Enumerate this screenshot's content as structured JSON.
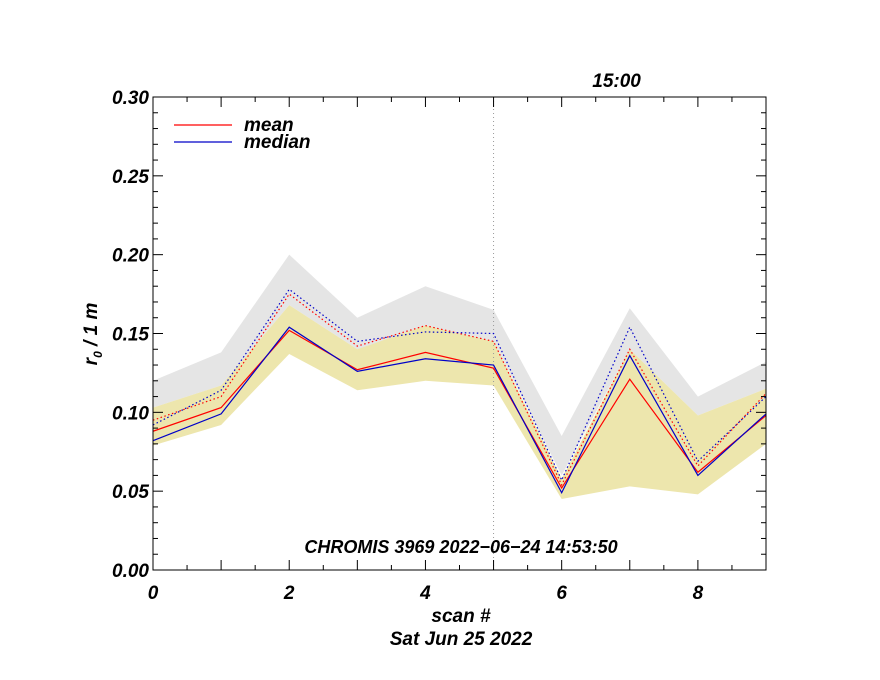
{
  "chart_data": {
    "type": "line",
    "title": "",
    "xlabel": "scan #",
    "ylabel_main": "r",
    "ylabel_sub": "0",
    "ylabel_unit": " / 1 m",
    "date_label": "Sat Jun 25 2022",
    "annotation": "CHROMIS 3969 2022−06−24 14:53:50",
    "time_marker": {
      "x": 5,
      "label": "15:00"
    },
    "xlim": [
      0,
      9
    ],
    "ylim": [
      0,
      0.3
    ],
    "x_ticks": [
      0,
      2,
      4,
      6,
      8
    ],
    "y_ticks": [
      "0.00",
      "0.05",
      "0.10",
      "0.15",
      "0.20",
      "0.25",
      "0.30"
    ],
    "x": [
      0,
      1,
      2,
      3,
      4,
      5,
      6,
      7,
      8,
      9
    ],
    "bands": [
      {
        "name": "upper range",
        "color": "#e5e5e5",
        "lower": [
          0.103,
          0.117,
          0.168,
          0.14,
          0.15,
          0.145,
          0.06,
          0.14,
          0.098,
          0.115
        ],
        "upper": [
          0.12,
          0.138,
          0.2,
          0.16,
          0.18,
          0.165,
          0.085,
          0.166,
          0.11,
          0.132
        ]
      },
      {
        "name": "range",
        "color": "#ede6ad",
        "lower": [
          0.079,
          0.092,
          0.137,
          0.114,
          0.12,
          0.117,
          0.045,
          0.053,
          0.048,
          0.08
        ],
        "upper": [
          0.103,
          0.117,
          0.168,
          0.14,
          0.155,
          0.145,
          0.058,
          0.14,
          0.098,
          0.115
        ]
      }
    ],
    "series": [
      {
        "name": "mean",
        "color": "#ff0000",
        "style": "solid",
        "values": [
          0.088,
          0.103,
          0.152,
          0.127,
          0.138,
          0.128,
          0.052,
          0.121,
          0.062,
          0.098
        ]
      },
      {
        "name": "median",
        "color": "#0000c8",
        "style": "solid",
        "values": [
          0.082,
          0.099,
          0.154,
          0.126,
          0.134,
          0.13,
          0.049,
          0.136,
          0.06,
          0.099
        ]
      },
      {
        "name": "mean (dotted)",
        "color": "#ff0000",
        "style": "dotted",
        "values": [
          0.095,
          0.11,
          0.175,
          0.142,
          0.155,
          0.145,
          0.054,
          0.14,
          0.066,
          0.112
        ]
      },
      {
        "name": "median (dotted)",
        "color": "#0000c8",
        "style": "dotted",
        "values": [
          0.092,
          0.114,
          0.178,
          0.145,
          0.151,
          0.15,
          0.057,
          0.154,
          0.069,
          0.11
        ]
      }
    ],
    "legend": [
      {
        "label": "mean",
        "color": "#ff0000"
      },
      {
        "label": "median",
        "color": "#0000c8"
      }
    ],
    "legend_position": "top-left"
  }
}
